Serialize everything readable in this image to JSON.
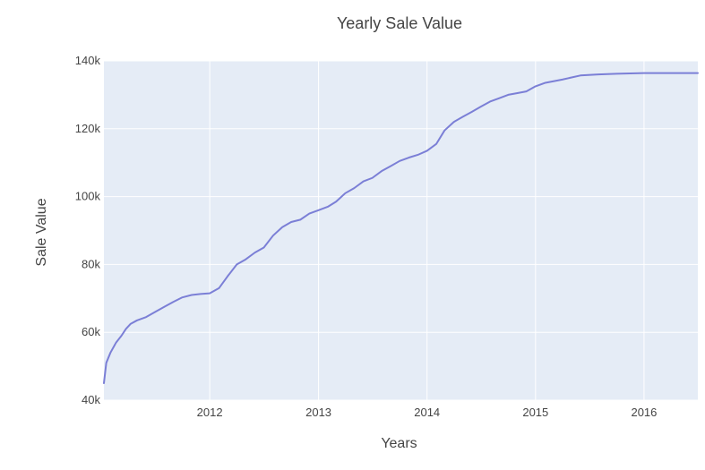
{
  "chart_data": {
    "type": "line",
    "title": "Yearly Sale Value",
    "xlabel": "Years",
    "ylabel": "Sale Value",
    "x_range": [
      "2011-01-10",
      "2016-06-30"
    ],
    "y_range": [
      40000,
      140000
    ],
    "x_ticks": [
      {
        "value": "2012-01-01",
        "label": "2012"
      },
      {
        "value": "2013-01-01",
        "label": "2013"
      },
      {
        "value": "2014-01-01",
        "label": "2014"
      },
      {
        "value": "2015-01-01",
        "label": "2015"
      },
      {
        "value": "2016-01-01",
        "label": "2016"
      }
    ],
    "y_ticks": [
      {
        "value": 40000,
        "label": "40k"
      },
      {
        "value": 60000,
        "label": "60k"
      },
      {
        "value": 80000,
        "label": "80k"
      },
      {
        "value": 100000,
        "label": "100k"
      },
      {
        "value": 120000,
        "label": "120k"
      },
      {
        "value": 140000,
        "label": "140k"
      }
    ],
    "grid": true,
    "colors": {
      "plot_bg": "#e5ecf6",
      "grid": "#ffffff",
      "line": "#7b7fd6",
      "text": "#444444",
      "title": "#444444"
    },
    "series": [
      {
        "x": [
          "2011-01-10",
          "2011-01-18",
          "2011-02-01",
          "2011-02-20",
          "2011-03-10",
          "2011-03-25",
          "2011-04-10",
          "2011-05-01",
          "2011-06-01",
          "2011-07-01",
          "2011-08-01",
          "2011-09-01",
          "2011-10-01",
          "2011-11-01",
          "2011-12-01",
          "2012-01-01",
          "2012-02-01",
          "2012-03-01",
          "2012-04-01",
          "2012-05-01",
          "2012-06-01",
          "2012-07-01",
          "2012-08-01",
          "2012-09-01",
          "2012-10-01",
          "2012-11-01",
          "2012-12-01",
          "2013-01-01",
          "2013-02-01",
          "2013-03-01",
          "2013-04-01",
          "2013-05-01",
          "2013-06-01",
          "2013-07-01",
          "2013-08-01",
          "2013-09-01",
          "2013-10-01",
          "2013-11-01",
          "2013-12-01",
          "2014-01-01",
          "2014-02-01",
          "2014-03-01",
          "2014-04-01",
          "2014-05-01",
          "2014-06-01",
          "2014-07-01",
          "2014-08-01",
          "2014-09-01",
          "2014-10-01",
          "2014-11-01",
          "2014-12-01",
          "2015-01-01",
          "2015-02-01",
          "2015-04-01",
          "2015-06-01",
          "2015-08-01",
          "2015-10-01",
          "2016-01-01",
          "2016-03-01",
          "2016-06-30"
        ],
        "y": [
          45000,
          51000,
          54000,
          57000,
          59000,
          61000,
          62500,
          63500,
          64500,
          66000,
          67500,
          69000,
          70300,
          71000,
          71300,
          71500,
          73000,
          76500,
          80000,
          81500,
          83500,
          85000,
          88500,
          91000,
          92500,
          93200,
          95000,
          96000,
          97000,
          98500,
          101000,
          102500,
          104500,
          105500,
          107500,
          109000,
          110500,
          111500,
          112300,
          113500,
          115500,
          119500,
          122000,
          123500,
          125000,
          126500,
          128000,
          129000,
          130000,
          130500,
          131000,
          132500,
          133500,
          134500,
          135700,
          136000,
          136200,
          136400,
          136400,
          136400
        ]
      }
    ]
  }
}
